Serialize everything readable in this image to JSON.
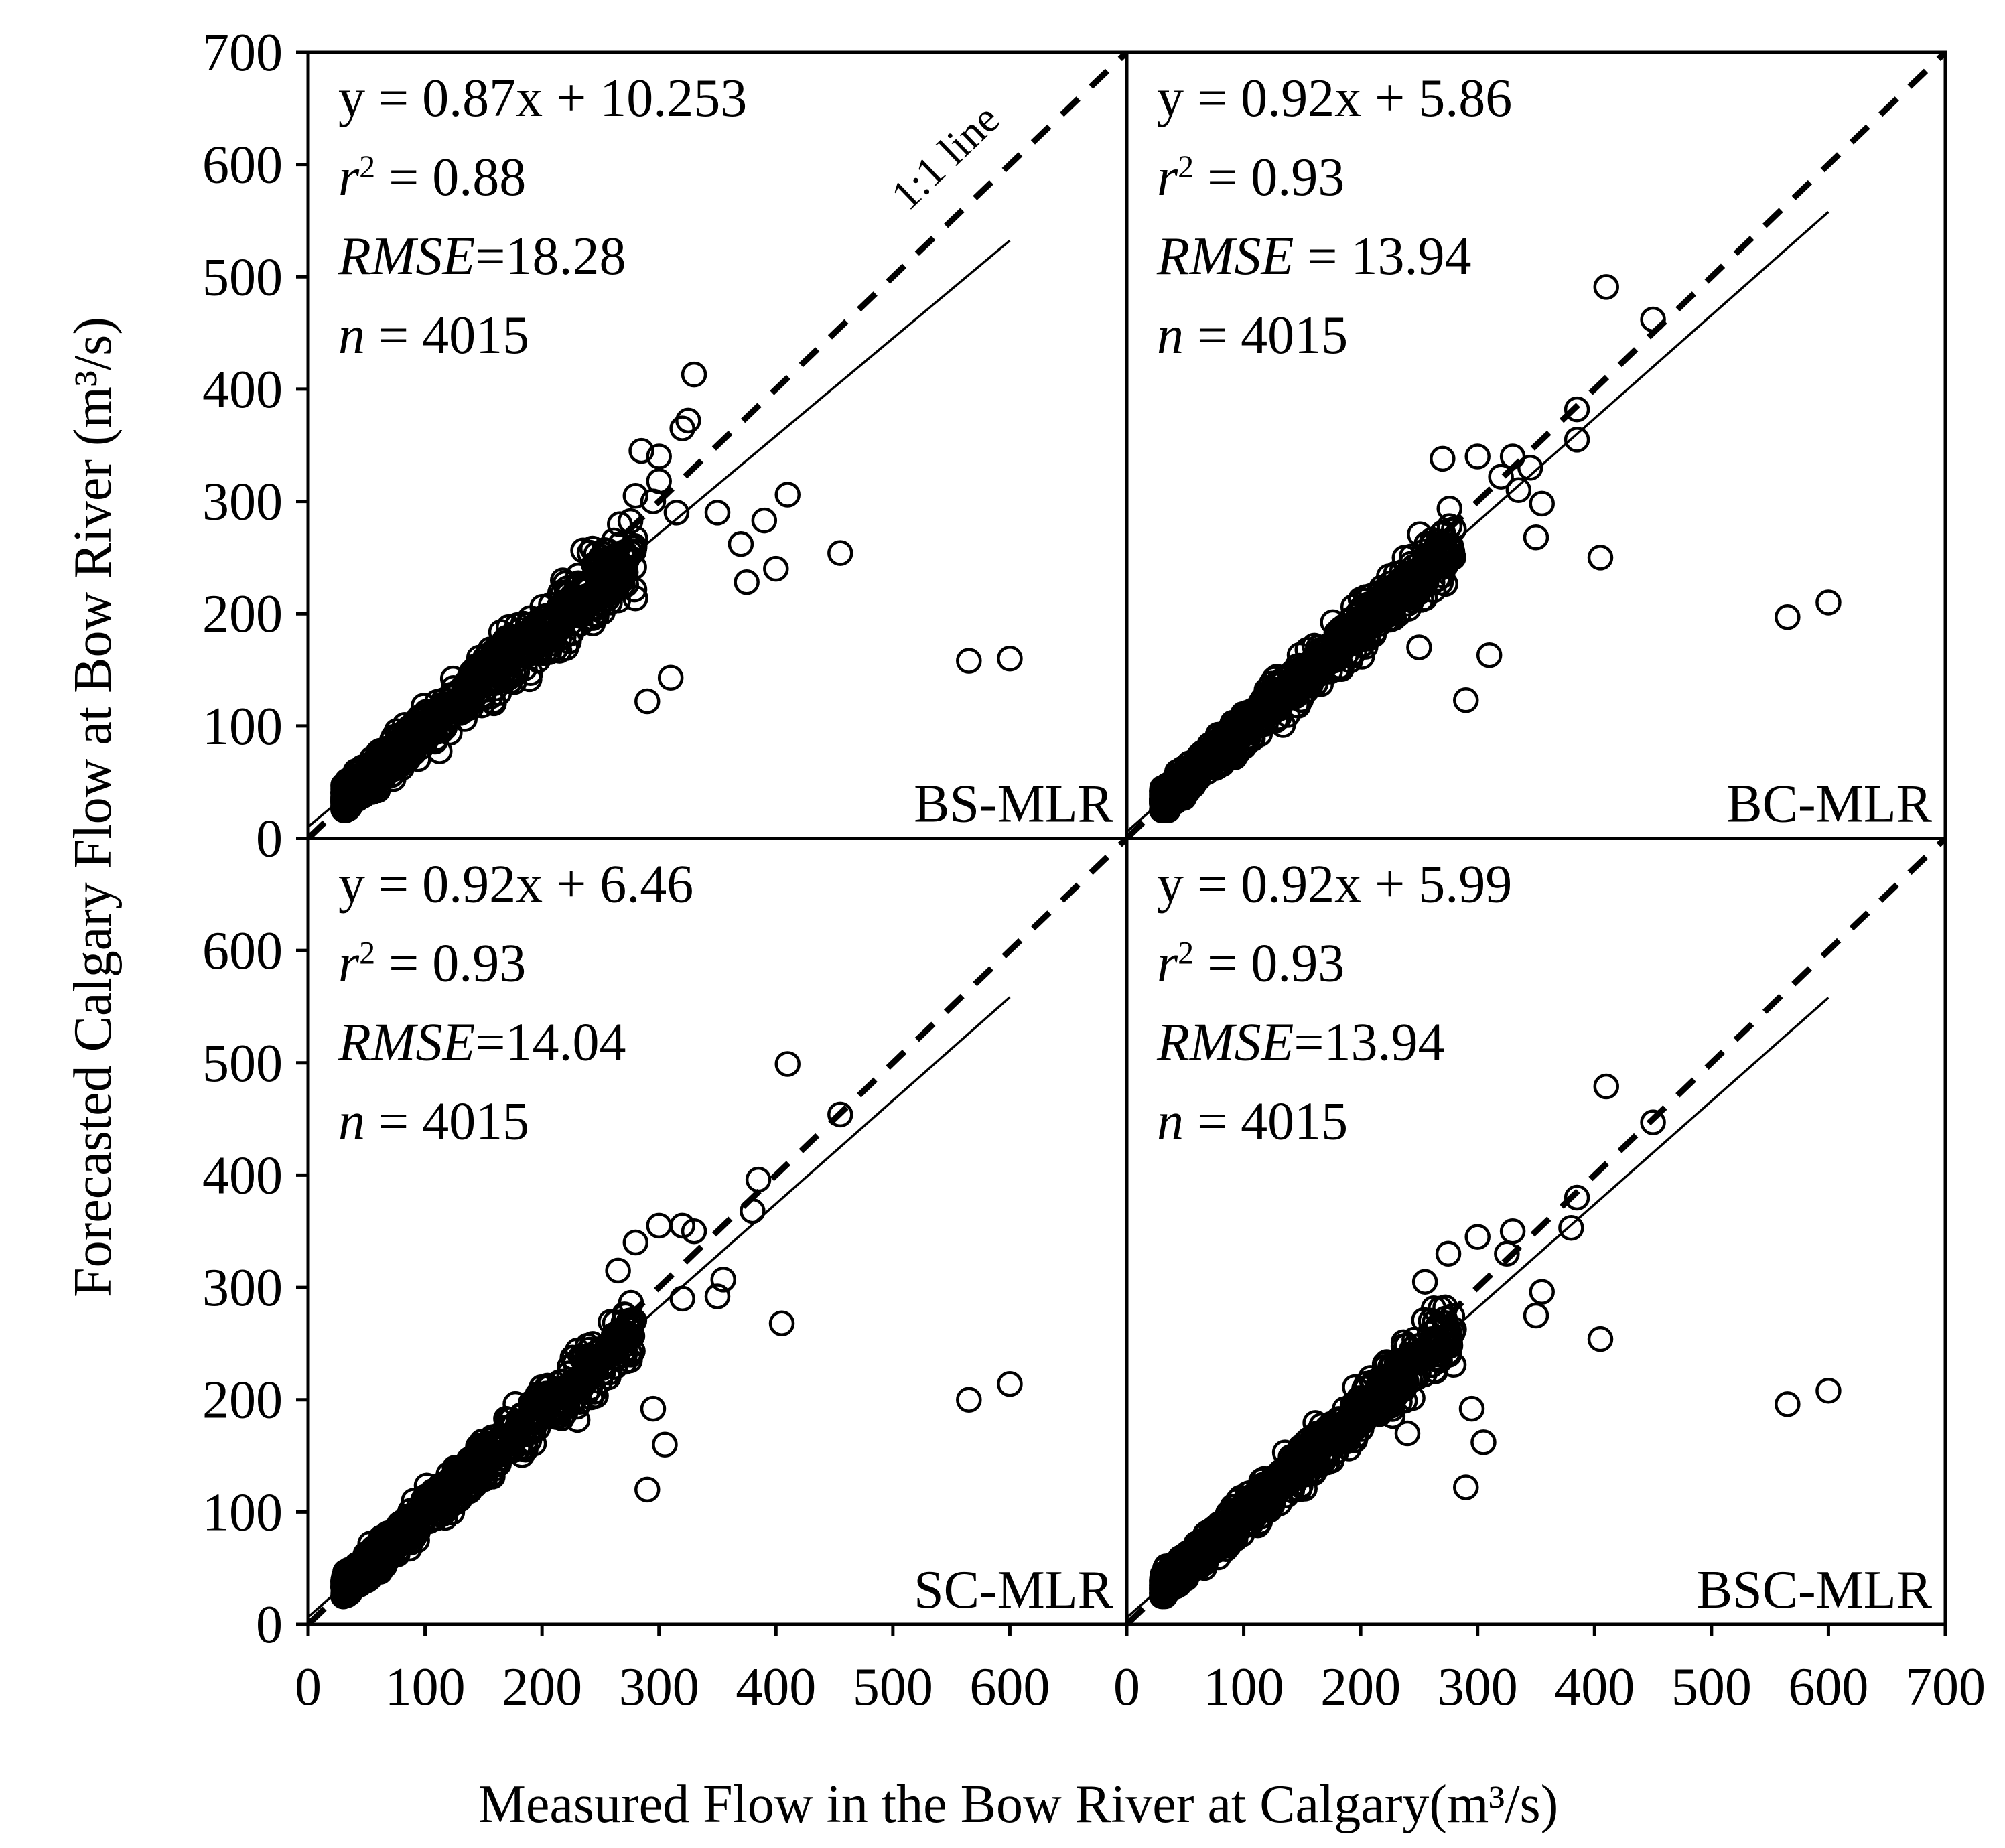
{
  "chart_data": {
    "type": "scatter",
    "xlabel": "Measured Flow in the Bow River at Calgary(m³/s)",
    "ylabel": "Forecasted Calgary Flow at Bow River (m³/s)",
    "xlim": [
      0,
      700
    ],
    "ylim": [
      0,
      700
    ],
    "x_ticks_left": [
      "0",
      "100",
      "200",
      "300",
      "400",
      "500",
      "600"
    ],
    "x_ticks_right": [
      "0",
      "100",
      "200",
      "300",
      "400",
      "500",
      "600",
      "700"
    ],
    "x_tick_values_left": [
      0,
      100,
      200,
      300,
      400,
      500,
      600
    ],
    "x_tick_values_right": [
      0,
      100,
      200,
      300,
      400,
      500,
      600,
      700
    ],
    "y_ticks_top": [
      "0",
      "100",
      "200",
      "300",
      "400",
      "500",
      "600",
      "700"
    ],
    "y_ticks_bottom": [
      "0",
      "100",
      "200",
      "300",
      "400",
      "500",
      "600"
    ],
    "y_tick_values_top": [
      0,
      100,
      200,
      300,
      400,
      500,
      600,
      700
    ],
    "y_tick_values_bottom": [
      0,
      100,
      200,
      300,
      400,
      500,
      600
    ],
    "one_one_label": "1:1 line",
    "grid": false,
    "panels": [
      {
        "model": "BS-MLR",
        "equation": "y = 0.87x + 10.253",
        "r2_label": "r",
        "r2_value": " = 0.88",
        "rmse_label": "RMSE",
        "rmse_value": "=18.28",
        "n_label": "n",
        "n_value": " = 4015",
        "slope": 0.87,
        "intercept": 10.253,
        "fit_x": [
          0,
          600
        ],
        "outliers": [
          [
            330,
            413
          ],
          [
            325,
            372
          ],
          [
            320,
            365
          ],
          [
            300,
            340
          ],
          [
            285,
            345
          ],
          [
            300,
            318
          ],
          [
            350,
            290
          ],
          [
            370,
            262
          ],
          [
            375,
            228
          ],
          [
            390,
            283
          ],
          [
            410,
            306
          ],
          [
            400,
            240
          ],
          [
            455,
            254
          ],
          [
            565,
            158
          ],
          [
            600,
            160
          ],
          [
            310,
            143
          ],
          [
            290,
            122
          ],
          [
            280,
            305
          ],
          [
            295,
            300
          ],
          [
            315,
            290
          ]
        ],
        "cloud": {
          "x_min": 30,
          "x_max": 280,
          "slope": 0.87,
          "intercept": 10.253,
          "spread": 30,
          "count": 900
        }
      },
      {
        "model": "BC-MLR",
        "equation": "y = 0.92x + 5.86",
        "r2_label": "r",
        "r2_value": " = 0.93",
        "rmse_label": "RMSE",
        "rmse_value": " = 13.94",
        "n_label": "n",
        "n_value": " = 4015",
        "slope": 0.92,
        "intercept": 5.86,
        "fit_x": [
          0,
          600
        ],
        "outliers": [
          [
            410,
            491
          ],
          [
            450,
            462
          ],
          [
            385,
            382
          ],
          [
            385,
            355
          ],
          [
            355,
            298
          ],
          [
            330,
            340
          ],
          [
            320,
            322
          ],
          [
            300,
            340
          ],
          [
            270,
            338
          ],
          [
            350,
            268
          ],
          [
            405,
            250
          ],
          [
            565,
            197
          ],
          [
            600,
            210
          ],
          [
            290,
            123
          ],
          [
            310,
            163
          ],
          [
            250,
            170
          ],
          [
            335,
            310
          ],
          [
            345,
            330
          ]
        ],
        "cloud": {
          "x_min": 30,
          "x_max": 280,
          "slope": 0.92,
          "intercept": 5.86,
          "spread": 24,
          "count": 950
        }
      },
      {
        "model": "SC-MLR",
        "equation": "y = 0.92x + 6.46",
        "r2_label": "r",
        "r2_value": " = 0.93",
        "rmse_label": "RMSE",
        "rmse_value": "=14.04",
        "n_label": "n",
        "n_value": " = 4015",
        "slope": 0.92,
        "intercept": 6.46,
        "fit_x": [
          0,
          600
        ],
        "outliers": [
          [
            410,
            499
          ],
          [
            455,
            454
          ],
          [
            385,
            396
          ],
          [
            380,
            368
          ],
          [
            355,
            307
          ],
          [
            350,
            292
          ],
          [
            330,
            350
          ],
          [
            320,
            355
          ],
          [
            300,
            355
          ],
          [
            280,
            340
          ],
          [
            405,
            268
          ],
          [
            565,
            200
          ],
          [
            600,
            214
          ],
          [
            290,
            120
          ],
          [
            305,
            160
          ],
          [
            295,
            192
          ],
          [
            320,
            290
          ],
          [
            265,
            315
          ]
        ],
        "cloud": {
          "x_min": 30,
          "x_max": 280,
          "slope": 0.92,
          "intercept": 6.46,
          "spread": 24,
          "count": 950
        }
      },
      {
        "model": "BSC-MLR",
        "equation": "y = 0.92x + 5.99",
        "r2_label": "r",
        "r2_value": " = 0.93",
        "rmse_label": "RMSE",
        "rmse_value": "=13.94",
        "n_label": "n",
        "n_value": " = 4015",
        "slope": 0.92,
        "intercept": 5.99,
        "fit_x": [
          0,
          600
        ],
        "outliers": [
          [
            410,
            479
          ],
          [
            450,
            447
          ],
          [
            385,
            380
          ],
          [
            380,
            353
          ],
          [
            355,
            296
          ],
          [
            350,
            275
          ],
          [
            330,
            350
          ],
          [
            325,
            330
          ],
          [
            300,
            345
          ],
          [
            275,
            330
          ],
          [
            405,
            254
          ],
          [
            565,
            196
          ],
          [
            600,
            208
          ],
          [
            290,
            122
          ],
          [
            305,
            162
          ],
          [
            295,
            192
          ],
          [
            240,
            170
          ],
          [
            255,
            305
          ]
        ],
        "cloud": {
          "x_min": 30,
          "x_max": 280,
          "slope": 0.92,
          "intercept": 5.99,
          "spread": 24,
          "count": 950
        }
      }
    ]
  }
}
